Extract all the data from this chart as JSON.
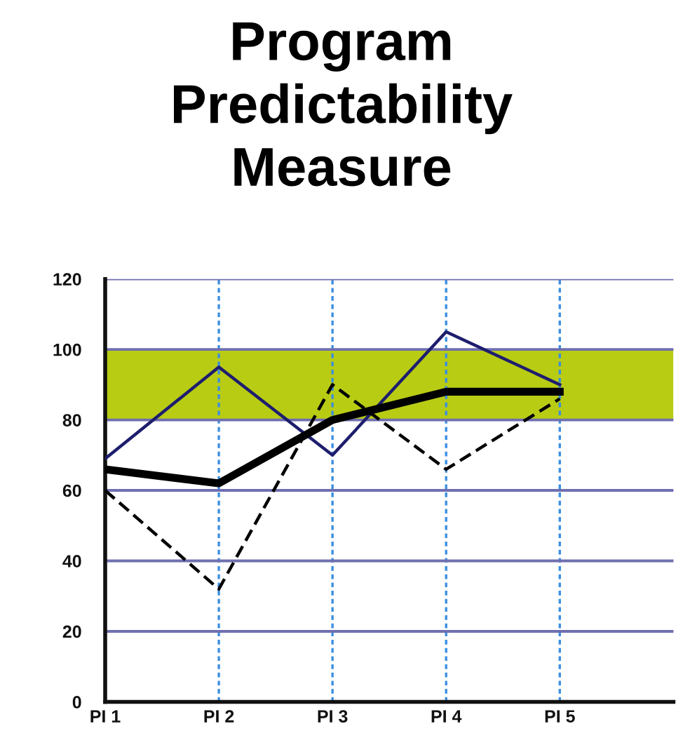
{
  "chart_data": {
    "type": "line",
    "title": "Program\nPredictability\nMeasure",
    "categories": [
      "PI 1",
      "PI 2",
      "PI 3",
      "PI 4",
      "PI 5"
    ],
    "series": [
      {
        "color": "#1e1e6e",
        "values": [
          69,
          95,
          70,
          105,
          90
        ]
      },
      {
        "color": "#000000",
        "values": [
          66,
          62,
          80,
          88,
          88
        ]
      },
      {
        "color": "#000000",
        "line_style": "dashed",
        "values": [
          60,
          32,
          90,
          66,
          86
        ]
      }
    ],
    "ylim": [
      0,
      120
    ],
    "yticks": [
      0,
      20,
      40,
      60,
      80,
      100,
      120
    ],
    "bands": [
      {
        "axis": "y",
        "from": 80,
        "to": 100,
        "color": "#b8cc14"
      }
    ],
    "grid": true,
    "marker": "none",
    "line_style": "solid",
    "legend": false
  }
}
